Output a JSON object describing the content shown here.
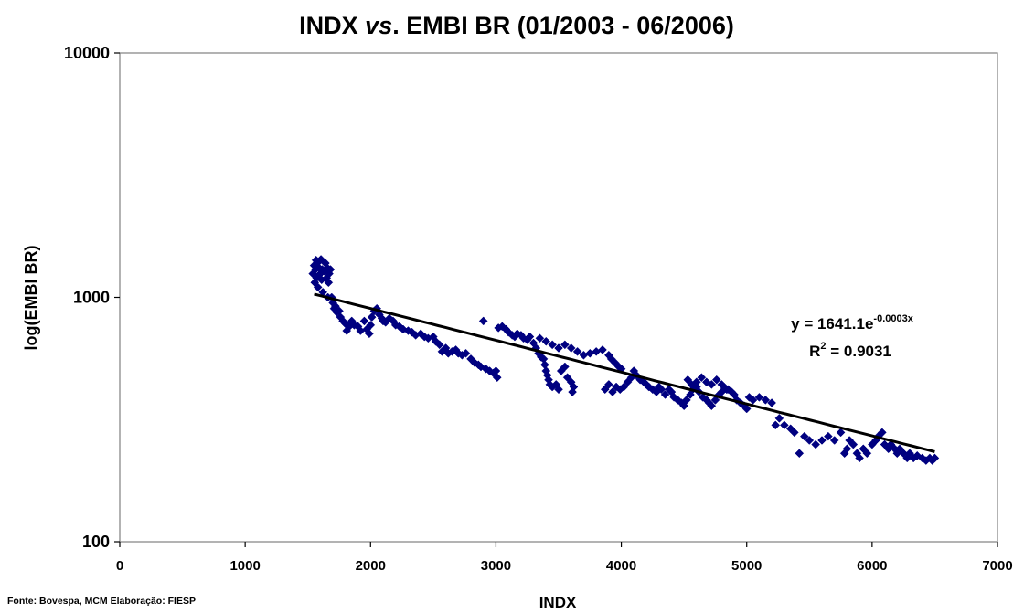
{
  "chart_data": {
    "type": "scatter",
    "title_prefix": "INDX ",
    "title_italic": "vs",
    "title_suffix": ". EMBI BR (01/2003 - 06/2006)",
    "xlabel": "INDX",
    "ylabel": "log(EMBI BR)",
    "xlim": [
      0,
      7000
    ],
    "ylim": [
      100,
      10000
    ],
    "y_scale": "log",
    "x_ticks": [
      "0",
      "1000",
      "2000",
      "3000",
      "4000",
      "5000",
      "6000",
      "7000"
    ],
    "y_ticks": [
      "100",
      "1000",
      "10000"
    ],
    "grid": false,
    "legend": "none",
    "marker": "diamond",
    "colors": {
      "points": "#000080",
      "trendline": "#000000",
      "frame": "#808080"
    },
    "trendline": {
      "type": "exponential",
      "a": 1641.1,
      "b": -0.0003,
      "x_range": [
        1550,
        6500
      ],
      "equation_base": "y = 1641.1e",
      "equation_exp": "-0.0003x",
      "r2_prefix": "R",
      "r2_sup": "2",
      "r2_suffix": " = 0.9031"
    },
    "series": [
      {
        "points": [
          [
            1540,
            1250
          ],
          [
            1550,
            1350
          ],
          [
            1555,
            1150
          ],
          [
            1560,
            1300
          ],
          [
            1565,
            1420
          ],
          [
            1570,
            1200
          ],
          [
            1575,
            1380
          ],
          [
            1580,
            1100
          ],
          [
            1590,
            1320
          ],
          [
            1600,
            1250
          ],
          [
            1605,
            1430
          ],
          [
            1610,
            1180
          ],
          [
            1615,
            1300
          ],
          [
            1620,
            1050
          ],
          [
            1630,
            1280
          ],
          [
            1640,
            1380
          ],
          [
            1650,
            1200
          ],
          [
            1655,
            1320
          ],
          [
            1660,
            1000
          ],
          [
            1665,
            1150
          ],
          [
            1670,
            1250
          ],
          [
            1680,
            1300
          ],
          [
            1690,
            1000
          ],
          [
            1700,
            950
          ],
          [
            1710,
            900
          ],
          [
            1720,
            920
          ],
          [
            1730,
            870
          ],
          [
            1750,
            880
          ],
          [
            1760,
            830
          ],
          [
            1780,
            800
          ],
          [
            1800,
            780
          ],
          [
            1810,
            730
          ],
          [
            1830,
            760
          ],
          [
            1850,
            800
          ],
          [
            1870,
            770
          ],
          [
            1900,
            760
          ],
          [
            1920,
            730
          ],
          [
            1950,
            800
          ],
          [
            1970,
            740
          ],
          [
            1990,
            710
          ],
          [
            2000,
            770
          ],
          [
            2010,
            830
          ],
          [
            2030,
            880
          ],
          [
            2050,
            900
          ],
          [
            2070,
            850
          ],
          [
            2090,
            820
          ],
          [
            2100,
            800
          ],
          [
            2120,
            790
          ],
          [
            2150,
            820
          ],
          [
            2180,
            800
          ],
          [
            2200,
            770
          ],
          [
            2230,
            760
          ],
          [
            2260,
            740
          ],
          [
            2300,
            730
          ],
          [
            2330,
            720
          ],
          [
            2360,
            700
          ],
          [
            2400,
            710
          ],
          [
            2430,
            690
          ],
          [
            2460,
            680
          ],
          [
            2500,
            690
          ],
          [
            2520,
            660
          ],
          [
            2550,
            640
          ],
          [
            2570,
            600
          ],
          [
            2600,
            620
          ],
          [
            2620,
            590
          ],
          [
            2650,
            600
          ],
          [
            2680,
            610
          ],
          [
            2700,
            590
          ],
          [
            2730,
            580
          ],
          [
            2760,
            590
          ],
          [
            2800,
            560
          ],
          [
            2830,
            540
          ],
          [
            2860,
            530
          ],
          [
            2880,
            520
          ],
          [
            2900,
            800
          ],
          [
            2920,
            510
          ],
          [
            2950,
            500
          ],
          [
            2980,
            490
          ],
          [
            3000,
            500
          ],
          [
            3010,
            470
          ],
          [
            3020,
            750
          ],
          [
            3050,
            760
          ],
          [
            3080,
            740
          ],
          [
            3100,
            720
          ],
          [
            3130,
            700
          ],
          [
            3150,
            690
          ],
          [
            3170,
            710
          ],
          [
            3200,
            700
          ],
          [
            3220,
            680
          ],
          [
            3250,
            670
          ],
          [
            3270,
            690
          ],
          [
            3300,
            650
          ],
          [
            3320,
            620
          ],
          [
            3340,
            590
          ],
          [
            3360,
            570
          ],
          [
            3380,
            560
          ],
          [
            3390,
            530
          ],
          [
            3400,
            500
          ],
          [
            3410,
            480
          ],
          [
            3420,
            460
          ],
          [
            3430,
            440
          ],
          [
            3450,
            430
          ],
          [
            3480,
            440
          ],
          [
            3500,
            420
          ],
          [
            3520,
            500
          ],
          [
            3550,
            520
          ],
          [
            3570,
            470
          ],
          [
            3600,
            450
          ],
          [
            3620,
            430
          ],
          [
            3610,
            410
          ],
          [
            3350,
            680
          ],
          [
            3400,
            660
          ],
          [
            3450,
            640
          ],
          [
            3500,
            620
          ],
          [
            3550,
            640
          ],
          [
            3600,
            620
          ],
          [
            3650,
            600
          ],
          [
            3700,
            580
          ],
          [
            3750,
            590
          ],
          [
            3800,
            600
          ],
          [
            3850,
            610
          ],
          [
            3900,
            580
          ],
          [
            3920,
            560
          ],
          [
            3950,
            540
          ],
          [
            3980,
            520
          ],
          [
            4000,
            510
          ],
          [
            3870,
            420
          ],
          [
            3900,
            440
          ],
          [
            3930,
            410
          ],
          [
            3960,
            430
          ],
          [
            3990,
            420
          ],
          [
            4020,
            430
          ],
          [
            4050,
            450
          ],
          [
            4080,
            470
          ],
          [
            4100,
            500
          ],
          [
            4120,
            480
          ],
          [
            4150,
            460
          ],
          [
            4180,
            450
          ],
          [
            4200,
            440
          ],
          [
            4220,
            430
          ],
          [
            4250,
            420
          ],
          [
            4280,
            410
          ],
          [
            4300,
            430
          ],
          [
            4320,
            420
          ],
          [
            4350,
            400
          ],
          [
            4380,
            420
          ],
          [
            4400,
            410
          ],
          [
            4420,
            390
          ],
          [
            4450,
            380
          ],
          [
            4480,
            370
          ],
          [
            4500,
            360
          ],
          [
            4520,
            380
          ],
          [
            4550,
            400
          ],
          [
            4570,
            420
          ],
          [
            4600,
            430
          ],
          [
            4620,
            410
          ],
          [
            4650,
            390
          ],
          [
            4680,
            380
          ],
          [
            4700,
            370
          ],
          [
            4720,
            360
          ],
          [
            4750,
            380
          ],
          [
            4780,
            400
          ],
          [
            4800,
            410
          ],
          [
            4820,
            430
          ],
          [
            4850,
            420
          ],
          [
            4880,
            410
          ],
          [
            4900,
            400
          ],
          [
            4920,
            380
          ],
          [
            4950,
            370
          ],
          [
            4980,
            360
          ],
          [
            5000,
            350
          ],
          [
            4530,
            460
          ],
          [
            4560,
            440
          ],
          [
            4600,
            450
          ],
          [
            4640,
            470
          ],
          [
            4680,
            450
          ],
          [
            4720,
            440
          ],
          [
            4760,
            460
          ],
          [
            4800,
            440
          ],
          [
            4840,
            420
          ],
          [
            5020,
            390
          ],
          [
            5050,
            380
          ],
          [
            5100,
            390
          ],
          [
            5150,
            380
          ],
          [
            5200,
            370
          ],
          [
            5230,
            300
          ],
          [
            5260,
            320
          ],
          [
            5300,
            300
          ],
          [
            5350,
            290
          ],
          [
            5380,
            280
          ],
          [
            5420,
            230
          ],
          [
            5460,
            270
          ],
          [
            5500,
            260
          ],
          [
            5550,
            250
          ],
          [
            5600,
            260
          ],
          [
            5650,
            270
          ],
          [
            5700,
            260
          ],
          [
            5750,
            280
          ],
          [
            5780,
            230
          ],
          [
            5800,
            240
          ],
          [
            5820,
            260
          ],
          [
            5850,
            250
          ],
          [
            5880,
            230
          ],
          [
            5900,
            220
          ],
          [
            5930,
            240
          ],
          [
            5960,
            230
          ],
          [
            6000,
            250
          ],
          [
            6030,
            260
          ],
          [
            6050,
            270
          ],
          [
            6080,
            280
          ],
          [
            6100,
            250
          ],
          [
            6130,
            240
          ],
          [
            6150,
            250
          ],
          [
            6180,
            240
          ],
          [
            6200,
            230
          ],
          [
            6220,
            240
          ],
          [
            6250,
            230
          ],
          [
            6280,
            220
          ],
          [
            6300,
            230
          ],
          [
            6330,
            220
          ],
          [
            6360,
            225
          ],
          [
            6400,
            220
          ],
          [
            6430,
            215
          ],
          [
            6460,
            220
          ],
          [
            6480,
            215
          ],
          [
            6500,
            220
          ]
        ]
      }
    ]
  },
  "source_note": "Fonte: Bovespa,  MCM  Elaboração: FIESP"
}
